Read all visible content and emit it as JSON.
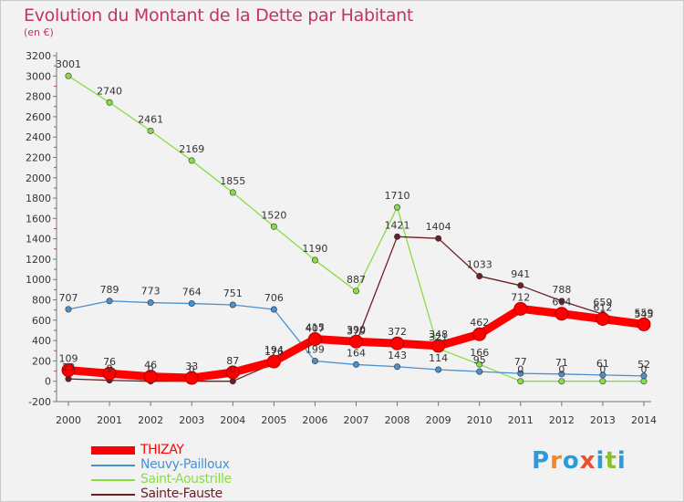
{
  "header": {
    "title": "Evolution du Montant de la Dette par Habitant",
    "subtitle": "(en €)"
  },
  "brand": {
    "text": "Proxiti",
    "letters": [
      {
        "ch": "P",
        "color": "#2e9ad6"
      },
      {
        "ch": "r",
        "color": "#f08a24"
      },
      {
        "ch": "o",
        "color": "#2e9ad6"
      },
      {
        "ch": "x",
        "color": "#e8502e"
      },
      {
        "ch": "i",
        "color": "#2e9ad6"
      },
      {
        "ch": "t",
        "color": "#8dbf2e"
      },
      {
        "ch": "i",
        "color": "#2e9ad6"
      }
    ]
  },
  "chart_data": {
    "type": "line",
    "title": "Evolution du Montant de la Dette par Habitant",
    "subtitle": "(en €)",
    "xlabel": "",
    "ylabel": "",
    "x": [
      "2000",
      "2001",
      "2002",
      "2003",
      "2004",
      "2005",
      "2006",
      "2007",
      "2008",
      "2009",
      "2010",
      "2011",
      "2012",
      "2013",
      "2014"
    ],
    "ylim": [
      -200,
      3200
    ],
    "yticks": [
      -200,
      0,
      200,
      400,
      600,
      800,
      1000,
      1200,
      1400,
      1600,
      1800,
      2000,
      2200,
      2400,
      2600,
      2800,
      3000,
      3200
    ],
    "grid": false,
    "legend_position": "bottom-left",
    "series": [
      {
        "name": "THIZAY",
        "color": "#ff0000",
        "values": [
          109,
          76,
          46,
          33,
          87,
          194,
          415,
          390,
          372,
          348,
          462,
          712,
          664,
          612,
          559
        ]
      },
      {
        "name": "Neuvy-Pailloux",
        "color": "#4a90d0",
        "values": [
          707,
          789,
          773,
          764,
          751,
          706,
          199,
          164,
          143,
          114,
          95,
          77,
          71,
          61,
          52
        ]
      },
      {
        "name": "Saint-Aoustrille",
        "color": "#88dd44",
        "values": [
          3001,
          2740,
          2461,
          2169,
          1855,
          1520,
          1190,
          887,
          1710,
          321,
          166,
          0,
          0,
          0,
          0
        ]
      },
      {
        "name": "Sainte-Fauste",
        "color": "#6b1f24",
        "values": [
          23,
          9,
          0,
          0,
          0,
          176,
          407,
          379,
          1421,
          1404,
          1033,
          941,
          788,
          659,
          545
        ]
      }
    ],
    "label_values": [
      [
        "109",
        "76",
        "46",
        "33",
        "87",
        "194",
        "415",
        "390",
        "372",
        "348",
        "462",
        "712",
        "664",
        "612",
        "559"
      ],
      [
        "707",
        "789",
        "773",
        "764",
        "751",
        "706",
        "199",
        "164",
        "143",
        "114",
        "95",
        "77",
        "71",
        "61",
        "52"
      ],
      [
        "3001",
        "2740",
        "2461",
        "2169",
        "1855",
        "1520",
        "1190",
        "887",
        "1710",
        "321",
        "166",
        "0",
        "0",
        "0",
        "0"
      ],
      [
        "23",
        "9",
        "0",
        "0",
        "0",
        "176",
        "407",
        "379",
        "1421",
        "1404",
        "1033",
        "941",
        "788",
        "659",
        "545"
      ]
    ]
  }
}
